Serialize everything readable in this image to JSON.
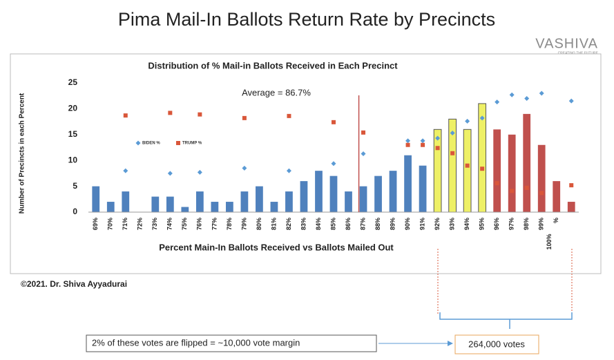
{
  "title": "Pima Mail-In Ballots Return Rate by Precincts",
  "logo": {
    "name": "VASHIVA",
    "tagline": "CREATING THE FUTURE"
  },
  "chart_data": {
    "type": "bar",
    "title": "Distribution of % Mail-in Ballots Received in Each Precinct",
    "x_label": "Percent Main-In Ballots Received vs Ballots Mailed Out",
    "y_label": "Number of Precincts in each Percent",
    "categories": [
      "69%",
      "70%",
      "71%",
      "72%",
      "73%",
      "74%",
      "75%",
      "76%",
      "77%",
      "78%",
      "79%",
      "80%",
      "81%",
      "82%",
      "83%",
      "84%",
      "85%",
      "86%",
      "87%",
      "88%",
      "89%",
      "90%",
      "91%",
      "92%",
      "93%",
      "94%",
      "95%",
      "96%",
      "97%",
      "98%",
      "99%",
      "%",
      null
    ],
    "extra_label": "100%",
    "values": [
      5,
      2,
      4,
      0,
      3,
      3,
      1,
      4,
      2,
      2,
      4,
      5,
      2,
      4,
      6,
      8,
      7,
      4,
      5,
      7,
      8,
      11,
      9,
      16,
      18,
      16,
      21,
      16,
      15,
      19,
      13,
      6,
      2
    ],
    "bar_colors": [
      "#4f81bd",
      "#4f81bd",
      "#4f81bd",
      "#4f81bd",
      "#4f81bd",
      "#4f81bd",
      "#4f81bd",
      "#4f81bd",
      "#4f81bd",
      "#4f81bd",
      "#4f81bd",
      "#4f81bd",
      "#4f81bd",
      "#4f81bd",
      "#4f81bd",
      "#4f81bd",
      "#4f81bd",
      "#4f81bd",
      "#4f81bd",
      "#4f81bd",
      "#4f81bd",
      "#4f81bd",
      "#4f81bd",
      "#eef066",
      "#eef066",
      "#eef066",
      "#eef066",
      "#c0504d",
      "#c0504d",
      "#c0504d",
      "#c0504d",
      "#c0504d",
      "#c0504d"
    ],
    "series": [
      {
        "name": "BIDEN %",
        "color": "#5b9bd5",
        "marker": "diamond",
        "values": [
          null,
          null,
          8,
          null,
          null,
          7.5,
          null,
          7.7,
          null,
          null,
          8.5,
          null,
          null,
          8,
          null,
          null,
          9.4,
          null,
          11.3,
          null,
          null,
          13.8,
          13.8,
          14.3,
          15.3,
          17.6,
          18.2,
          21.3,
          22.7,
          22,
          23,
          null,
          21.5
        ]
      },
      {
        "name": "TRUMP %",
        "color": "#d9573a",
        "marker": "square",
        "values": [
          null,
          null,
          18.7,
          null,
          null,
          19.2,
          null,
          18.9,
          null,
          null,
          18.2,
          null,
          null,
          18.6,
          null,
          null,
          17.4,
          null,
          15.4,
          null,
          null,
          13,
          13,
          12.4,
          11.4,
          9,
          8.4,
          5.6,
          4.1,
          4.7,
          3.7,
          null,
          5.2
        ]
      }
    ],
    "average": {
      "label": "Average = 86.7%",
      "value": 86.7,
      "color": "#c0504d"
    },
    "ylim": [
      0,
      25
    ],
    "yticks": [
      0,
      5,
      10,
      15,
      20,
      25
    ],
    "grid": false,
    "legend": "left"
  },
  "copyright": "©2021. Dr. Shiva Ayyadurai",
  "note": "2% of these votes are flipped = ~10,000 vote margin",
  "total": "264,000 votes"
}
